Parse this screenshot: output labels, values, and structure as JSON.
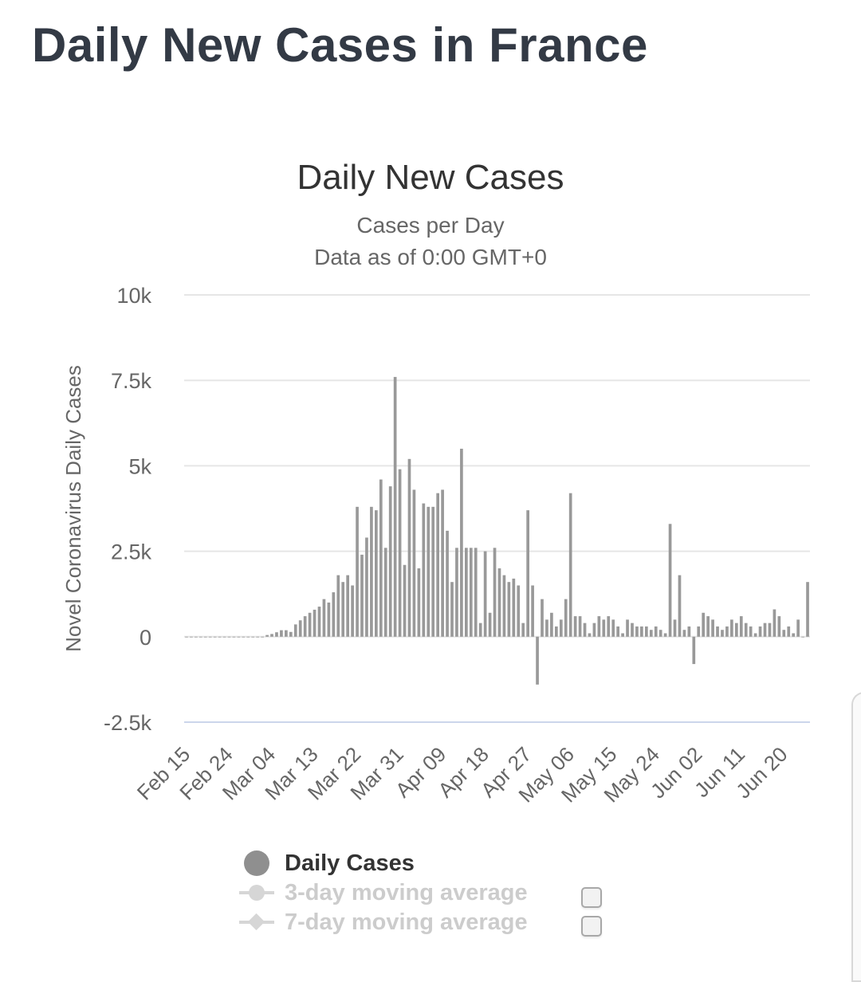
{
  "page": {
    "title": "Daily New Cases in France"
  },
  "chart_data": {
    "type": "bar",
    "title": "Daily New Cases",
    "subtitle_lines": [
      "Cases per Day",
      "Data as of 0:00 GMT+0"
    ],
    "xlabel": "",
    "ylabel": "Novel Coronavirus Daily Cases",
    "ylim": [
      -2500,
      10000
    ],
    "y_ticks": [
      {
        "value": 10000,
        "label": "10k"
      },
      {
        "value": 7500,
        "label": "7.5k"
      },
      {
        "value": 5000,
        "label": "5k"
      },
      {
        "value": 2500,
        "label": "2.5k"
      },
      {
        "value": 0,
        "label": "0"
      },
      {
        "value": -2500,
        "label": "-2.5k"
      }
    ],
    "x_tick_labels": [
      "Feb 15",
      "Feb 24",
      "Mar 04",
      "Mar 13",
      "Mar 22",
      "Mar 31",
      "Apr 09",
      "Apr 18",
      "Apr 27",
      "May 06",
      "May 15",
      "May 24",
      "Jun 02",
      "Jun 11",
      "Jun 20"
    ],
    "grid": true,
    "legend_position": "bottom",
    "bar_color": "#999999",
    "series": [
      {
        "name": "Daily Cases",
        "start_date": "Feb 15",
        "values": [
          0,
          0,
          0,
          0,
          0,
          0,
          0,
          0,
          0,
          0,
          0,
          0,
          0,
          0,
          0,
          0,
          0,
          50,
          80,
          130,
          190,
          190,
          140,
          360,
          480,
          600,
          700,
          790,
          880,
          1100,
          1000,
          1300,
          1800,
          1600,
          1800,
          1500,
          3800,
          2400,
          2900,
          3800,
          3700,
          4600,
          2600,
          4400,
          7600,
          4900,
          2100,
          5200,
          4300,
          2000,
          3900,
          3800,
          3800,
          4200,
          4300,
          3100,
          1600,
          2600,
          5500,
          2600,
          2600,
          2600,
          400,
          2500,
          700,
          2600,
          2000,
          1800,
          1600,
          1700,
          1500,
          400,
          3700,
          1500,
          -1400,
          1100,
          500,
          700,
          300,
          500,
          1100,
          4200,
          600,
          600,
          400,
          100,
          400,
          600,
          500,
          600,
          500,
          300,
          100,
          500,
          400,
          300,
          300,
          300,
          200,
          300,
          200,
          100,
          3300,
          500,
          1800,
          200,
          300,
          -800,
          300,
          700,
          600,
          500,
          300,
          200,
          300,
          500,
          400,
          600,
          400,
          300,
          100,
          300,
          400,
          400,
          800,
          600,
          200,
          300,
          100,
          500,
          0,
          1600
        ]
      },
      {
        "name": "3-day moving average"
      },
      {
        "name": "7-day moving average"
      }
    ]
  },
  "legend": {
    "daily_cases": "Daily Cases",
    "ma3": "3-day moving average",
    "ma7": "7-day moving average"
  },
  "colors": {
    "title": "#333a45",
    "bar": "#999999",
    "grid": "#e6e6e6",
    "zero_axis": "#ccd6eb",
    "legend_inactive": "#cccccc"
  }
}
